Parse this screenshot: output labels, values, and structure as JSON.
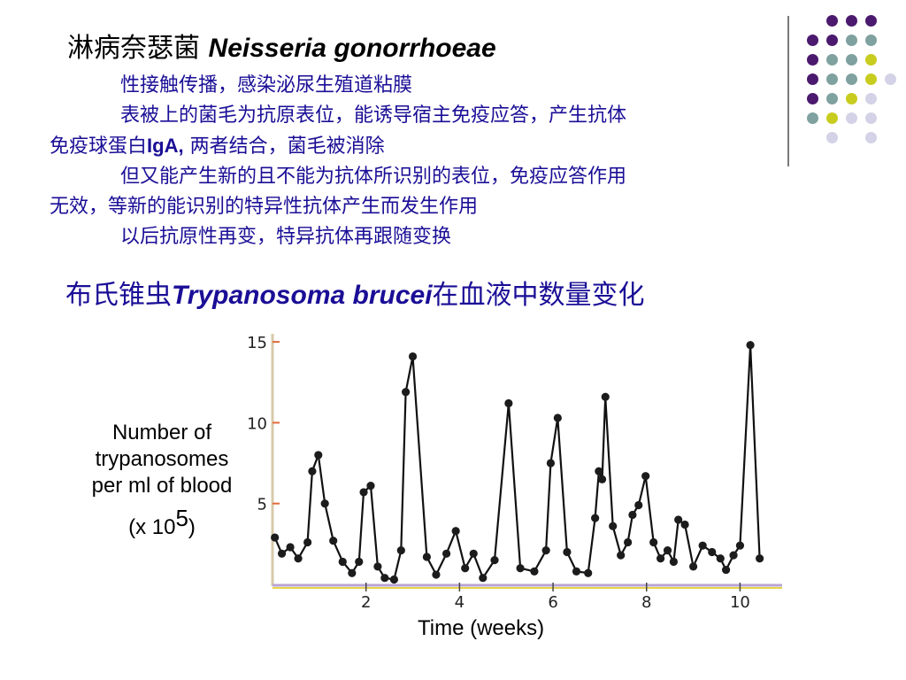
{
  "slide": {
    "title_cn": "淋病奈瑟菌 ",
    "title_latin": "Neisseria gonorrhoeae",
    "paragraphs": {
      "p1": "性接触传播，感染泌尿生殖道粘膜",
      "p2a": "表被上的菌毛为抗原表位，能诱导宿主免疫应答，产生抗体",
      "p2b_before": "免疫球蛋白",
      "p2b_latin": "IgA,",
      "p2b_after": " 两者结合，菌毛被消除",
      "p3a": "但又能产生新的且不能为抗体所识别的表位，免疫应答作用",
      "p3b": "无效，等新的能识别的特异性抗体产生而发生作用",
      "p4": "以后抗原性再变，特异抗体再跟随变换"
    },
    "heading2_before": "布氏锥虫",
    "heading2_latin": "Trypanosoma brucei",
    "heading2_after": "在血液中数量变化"
  },
  "colors": {
    "body_text": "#1a0e96",
    "dot_purple": "#4b1a6e",
    "dot_teal": "#7fa1a0",
    "dot_yellow": "#c8cc1e",
    "dot_lavender": "#d4d2e6",
    "axis_y": "#d8c9a8",
    "axis_x_purple": "#b8a3d6",
    "axis_x_yellow": "#e6d24a"
  },
  "chart_data": {
    "type": "line",
    "xlabel": "Time (weeks)",
    "ylabel_lines": [
      "Number of",
      "trypanosomes",
      "per ml of blood"
    ],
    "ylabel_unit_prefix": "(x 10",
    "ylabel_unit_exp": "5",
    "ylabel_unit_suffix": ")",
    "x_ticks": [
      {
        "value": 2,
        "label": "2"
      },
      {
        "value": 4,
        "label": "4"
      },
      {
        "value": 6,
        "label": "6"
      },
      {
        "value": 8,
        "label": "8"
      },
      {
        "value": 10,
        "label": "10"
      }
    ],
    "y_ticks": [
      {
        "value": 5,
        "label": "5"
      },
      {
        "value": 10,
        "label": "10"
      },
      {
        "value": 15,
        "label": "15"
      }
    ],
    "xlim": [
      0,
      10.9
    ],
    "ylim": [
      0,
      15.5
    ],
    "series": [
      {
        "points": [
          [
            0.05,
            2.9
          ],
          [
            0.2,
            1.9
          ],
          [
            0.38,
            2.3
          ],
          [
            0.55,
            1.6
          ],
          [
            0.75,
            2.6
          ],
          [
            0.85,
            7.0
          ],
          [
            0.98,
            8.0
          ],
          [
            1.12,
            5.0
          ],
          [
            1.3,
            2.7
          ],
          [
            1.5,
            1.4
          ],
          [
            1.7,
            0.7
          ],
          [
            1.85,
            1.4
          ],
          [
            1.95,
            5.7
          ],
          [
            2.1,
            6.1
          ],
          [
            2.25,
            1.1
          ],
          [
            2.4,
            0.4
          ],
          [
            2.6,
            0.3
          ],
          [
            2.75,
            2.1
          ],
          [
            2.85,
            11.9
          ],
          [
            3.0,
            14.1
          ],
          [
            3.3,
            1.7
          ],
          [
            3.5,
            0.6
          ],
          [
            3.72,
            1.9
          ],
          [
            3.92,
            3.3
          ],
          [
            4.12,
            1.0
          ],
          [
            4.3,
            1.9
          ],
          [
            4.5,
            0.4
          ],
          [
            4.75,
            1.5
          ],
          [
            5.05,
            11.2
          ],
          [
            5.3,
            1.0
          ],
          [
            5.6,
            0.8
          ],
          [
            5.85,
            2.1
          ],
          [
            5.95,
            7.5
          ],
          [
            6.1,
            10.3
          ],
          [
            6.3,
            2.0
          ],
          [
            6.5,
            0.8
          ],
          [
            6.75,
            0.7
          ],
          [
            6.9,
            4.1
          ],
          [
            6.98,
            7.0
          ],
          [
            7.05,
            6.5
          ],
          [
            7.12,
            11.6
          ],
          [
            7.28,
            3.6
          ],
          [
            7.45,
            1.8
          ],
          [
            7.6,
            2.6
          ],
          [
            7.7,
            4.3
          ],
          [
            7.83,
            4.9
          ],
          [
            7.98,
            6.7
          ],
          [
            8.15,
            2.6
          ],
          [
            8.3,
            1.6
          ],
          [
            8.45,
            2.1
          ],
          [
            8.58,
            1.4
          ],
          [
            8.68,
            4.0
          ],
          [
            8.82,
            3.7
          ],
          [
            9.0,
            1.1
          ],
          [
            9.2,
            2.4
          ],
          [
            9.4,
            2.0
          ],
          [
            9.58,
            1.6
          ],
          [
            9.7,
            0.9
          ],
          [
            9.86,
            1.8
          ],
          [
            10.0,
            2.4
          ],
          [
            10.22,
            14.8
          ],
          [
            10.42,
            1.6
          ]
        ]
      }
    ]
  }
}
